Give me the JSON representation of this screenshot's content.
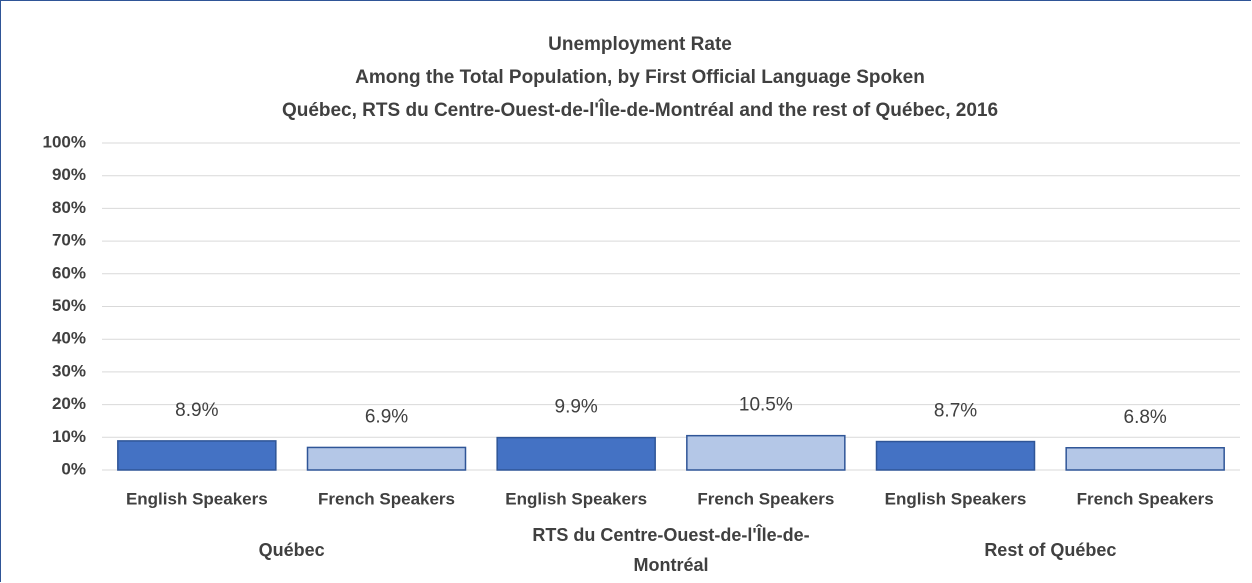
{
  "chart_data": {
    "type": "bar",
    "title": "Unemployment Rate",
    "subtitle": [
      "Among the Total Population, by First Official Language Spoken",
      "Québec, RTS du Centre-Ouest-de-l'Île-de-Montréal and the rest of Québec, 2016"
    ],
    "categories": [
      "English Speakers",
      "French Speakers",
      "English Speakers",
      "French Speakers",
      "English Speakers",
      "French Speakers"
    ],
    "groups": [
      "Québec",
      "RTS du Centre-Ouest-de-l'Île-de-Montréal",
      "Rest of Québec"
    ],
    "values": [
      8.9,
      6.9,
      9.9,
      10.5,
      8.7,
      6.8
    ],
    "value_labels": [
      "8.9%",
      "6.9%",
      "9.9%",
      "10.5%",
      "8.7%",
      "6.8%"
    ],
    "colors": [
      "#4472c4",
      "#b4c7e7",
      "#4472c4",
      "#b4c7e7",
      "#4472c4",
      "#b4c7e7"
    ],
    "ylim": [
      0,
      100
    ],
    "yticks": [
      {
        "value": 0,
        "label": "0%"
      },
      {
        "value": 10,
        "label": "10%"
      },
      {
        "value": 20,
        "label": "20%"
      },
      {
        "value": 30,
        "label": "30%"
      },
      {
        "value": 40,
        "label": "40%"
      },
      {
        "value": 50,
        "label": "50%"
      },
      {
        "value": 60,
        "label": "60%"
      },
      {
        "value": 70,
        "label": "70%"
      },
      {
        "value": 80,
        "label": "80%"
      },
      {
        "value": 90,
        "label": "90%"
      },
      {
        "value": 100,
        "label": "100%"
      }
    ],
    "grid": true
  }
}
